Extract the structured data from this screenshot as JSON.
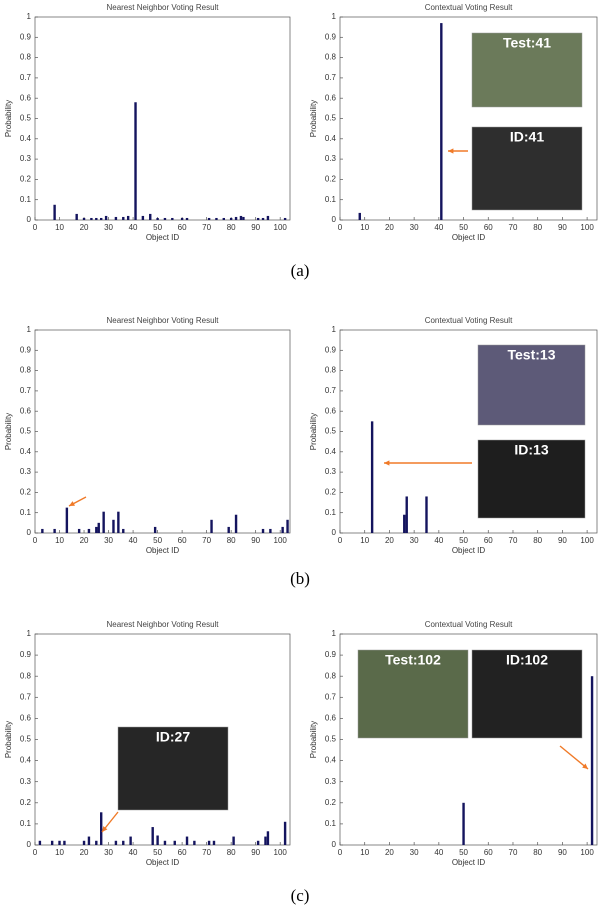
{
  "chart_data": [
    {
      "type": "bar",
      "title": "Nearest Neighbor Voting Result",
      "xlabel": "Object ID",
      "ylabel": "Probability",
      "color": "#14145e",
      "x": [
        8,
        17,
        20,
        23,
        25,
        27,
        29,
        33,
        36,
        38,
        41,
        44,
        47,
        50,
        53,
        56,
        60,
        62,
        71,
        74,
        77,
        80,
        82,
        84,
        85,
        91,
        93,
        95,
        102
      ],
      "values": [
        0.075,
        0.03,
        0.01,
        0.01,
        0.01,
        0.01,
        0.02,
        0.015,
        0.015,
        0.02,
        0.58,
        0.02,
        0.03,
        0.01,
        0.01,
        0.01,
        0.01,
        0.01,
        0.01,
        0.01,
        0.01,
        0.01,
        0.015,
        0.02,
        0.015,
        0.01,
        0.01,
        0.02,
        0.01
      ],
      "xlim": [
        0,
        104
      ],
      "ylim": [
        0,
        1
      ],
      "xticks": [
        0,
        10,
        20,
        30,
        40,
        50,
        60,
        70,
        80,
        90,
        100
      ],
      "yticks": [
        0,
        0.1,
        0.2,
        0.3,
        0.4,
        0.5,
        0.6,
        0.7,
        0.8,
        0.9,
        1
      ],
      "annotations": []
    },
    {
      "type": "bar",
      "title": "Contextual Voting Result",
      "xlabel": "Object ID",
      "ylabel": "Probability",
      "color": "#14145e",
      "x": [
        8,
        41
      ],
      "values": [
        0.035,
        0.97
      ],
      "xlim": [
        0,
        104
      ],
      "ylim": [
        0,
        1
      ],
      "xticks": [
        0,
        10,
        20,
        30,
        40,
        50,
        60,
        70,
        80,
        90,
        100
      ],
      "yticks": [
        0,
        0.1,
        0.2,
        0.3,
        0.4,
        0.5,
        0.6,
        0.7,
        0.8,
        0.9,
        1
      ],
      "annotations": [
        "Test:41",
        "ID:41"
      ]
    },
    {
      "type": "bar",
      "title": "Nearest Neighbor Voting Result",
      "xlabel": "Object ID",
      "ylabel": "Probability",
      "color": "#14145e",
      "x": [
        3,
        8,
        13,
        18,
        22,
        25,
        26,
        28,
        32,
        34,
        36,
        49,
        72,
        79,
        82,
        93,
        96,
        101,
        103
      ],
      "values": [
        0.02,
        0.02,
        0.125,
        0.02,
        0.02,
        0.03,
        0.05,
        0.105,
        0.065,
        0.105,
        0.02,
        0.03,
        0.065,
        0.03,
        0.09,
        0.02,
        0.02,
        0.03,
        0.065
      ],
      "xlim": [
        0,
        104
      ],
      "ylim": [
        0,
        1
      ],
      "xticks": [
        0,
        10,
        20,
        30,
        40,
        50,
        60,
        70,
        80,
        90,
        100
      ],
      "yticks": [
        0,
        0.1,
        0.2,
        0.3,
        0.4,
        0.5,
        0.6,
        0.7,
        0.8,
        0.9,
        1
      ],
      "annotations": []
    },
    {
      "type": "bar",
      "title": "Contextual Voting Result",
      "xlabel": "Object ID",
      "ylabel": "Probability",
      "color": "#14145e",
      "x": [
        13,
        26,
        27,
        35
      ],
      "values": [
        0.55,
        0.09,
        0.18,
        0.18
      ],
      "xlim": [
        0,
        104
      ],
      "ylim": [
        0,
        1
      ],
      "xticks": [
        0,
        10,
        20,
        30,
        40,
        50,
        60,
        70,
        80,
        90,
        100
      ],
      "yticks": [
        0,
        0.1,
        0.2,
        0.3,
        0.4,
        0.5,
        0.6,
        0.7,
        0.8,
        0.9,
        1
      ],
      "annotations": [
        "Test:13",
        "ID:13"
      ]
    },
    {
      "type": "bar",
      "title": "Nearest Neighbor Voting Result",
      "xlabel": "Object ID",
      "ylabel": "Probability",
      "color": "#14145e",
      "x": [
        2,
        7,
        10,
        12,
        20,
        22,
        25,
        27,
        33,
        36,
        39,
        48,
        50,
        53,
        57,
        62,
        65,
        71,
        73,
        81,
        91,
        94,
        95,
        102
      ],
      "values": [
        0.02,
        0.02,
        0.02,
        0.02,
        0.02,
        0.04,
        0.02,
        0.155,
        0.02,
        0.02,
        0.04,
        0.085,
        0.045,
        0.02,
        0.02,
        0.04,
        0.02,
        0.02,
        0.02,
        0.04,
        0.02,
        0.04,
        0.065,
        0.11
      ],
      "xlim": [
        0,
        104
      ],
      "ylim": [
        0,
        1
      ],
      "xticks": [
        0,
        10,
        20,
        30,
        40,
        50,
        60,
        70,
        80,
        90,
        100
      ],
      "yticks": [
        0,
        0.1,
        0.2,
        0.3,
        0.4,
        0.5,
        0.6,
        0.7,
        0.8,
        0.9,
        1
      ],
      "annotations": [
        "ID:27"
      ]
    },
    {
      "type": "bar",
      "title": "Contextual Voting Result",
      "xlabel": "Object ID",
      "ylabel": "Probability",
      "color": "#14145e",
      "x": [
        50,
        102
      ],
      "values": [
        0.2,
        0.8
      ],
      "xlim": [
        0,
        104
      ],
      "ylim": [
        0,
        1
      ],
      "xticks": [
        0,
        10,
        20,
        30,
        40,
        50,
        60,
        70,
        80,
        90,
        100
      ],
      "yticks": [
        0,
        0.1,
        0.2,
        0.3,
        0.4,
        0.5,
        0.6,
        0.7,
        0.8,
        0.9,
        1
      ],
      "annotations": [
        "Test:102",
        "ID:102"
      ]
    }
  ],
  "captions": [
    "(a)",
    "(b)",
    "(c)"
  ]
}
